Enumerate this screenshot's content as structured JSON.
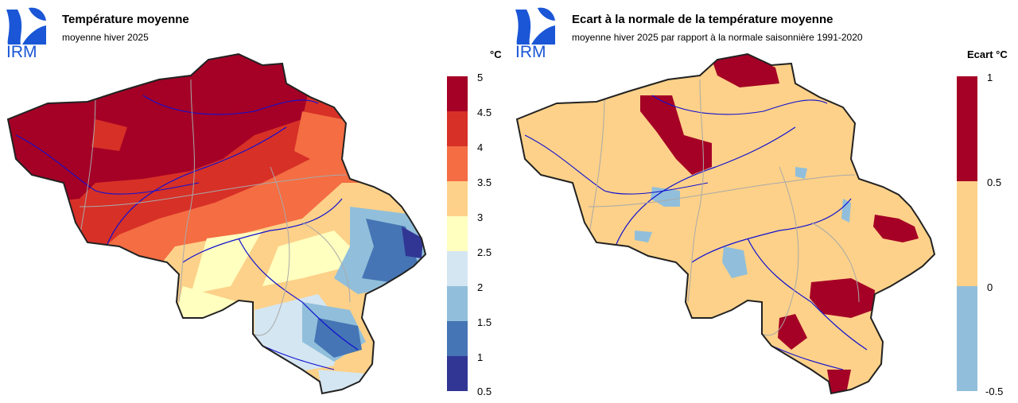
{
  "logo": {
    "text": "IRM",
    "color": "#1a56d6"
  },
  "left": {
    "title": "Température moyenne",
    "subtitle": "moyenne hiver 2025",
    "legend_unit": "°C",
    "legend_ticks": [
      "5",
      "4.5",
      "4",
      "3.5",
      "3",
      "2.5",
      "2",
      "1.5",
      "1",
      "0.5"
    ],
    "legend_colors": [
      "#a50026",
      "#d73027",
      "#f46d43",
      "#fdd189",
      "#ffffbf",
      "#d4e6f1",
      "#91bfdb",
      "#4575b4",
      "#313695"
    ]
  },
  "right": {
    "title": "Ecart à la normale de la température moyenne",
    "subtitle": "moyenne hiver 2025 par rapport à la normale saisonnière 1991-2020",
    "legend_unit": "Ecart °C",
    "legend_ticks": [
      "1",
      "0.5",
      "0",
      "-0.5"
    ],
    "legend_colors": [
      "#a50026",
      "#fdd189",
      "#91bfdb"
    ]
  }
}
